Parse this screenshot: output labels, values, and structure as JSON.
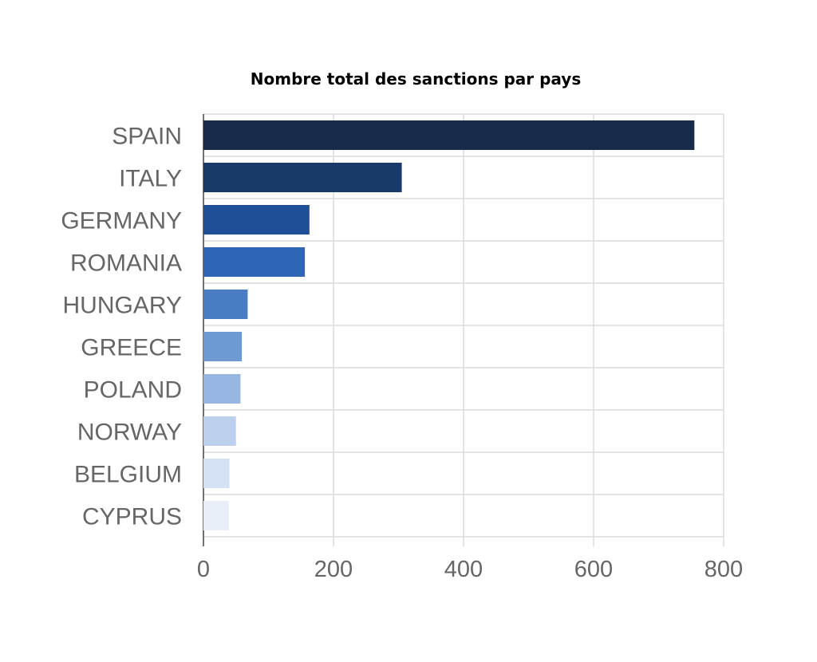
{
  "chart_data": {
    "type": "bar",
    "orientation": "horizontal",
    "title": "Nombre total des sanctions par pays",
    "xlabel": "",
    "ylabel": "",
    "categories": [
      "SPAIN",
      "ITALY",
      "GERMANY",
      "ROMANIA",
      "HUNGARY",
      "GREECE",
      "POLAND",
      "NORWAY",
      "BELGIUM",
      "CYPRUS"
    ],
    "values": [
      755,
      305,
      163,
      156,
      68,
      59,
      57,
      50,
      40,
      39
    ],
    "colors": [
      "#172a4a",
      "#193a68",
      "#1f4f97",
      "#2e66b5",
      "#4a7cc4",
      "#6e9ad4",
      "#97b6e2",
      "#bcd0ee",
      "#d5e2f5",
      "#e8eff9"
    ],
    "xlim": [
      0,
      800
    ],
    "xticks": [
      0,
      200,
      400,
      600,
      800
    ],
    "grid": true,
    "legend": "none"
  }
}
